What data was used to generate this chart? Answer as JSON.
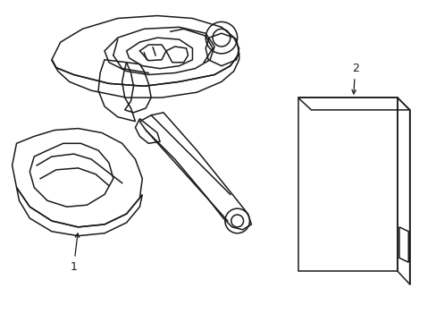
{
  "background_color": "#ffffff",
  "line_color": "#1a1a1a",
  "line_width": 1.1,
  "label1": "1",
  "label2": "2",
  "figsize": [
    4.89,
    3.6
  ],
  "dpi": 100
}
